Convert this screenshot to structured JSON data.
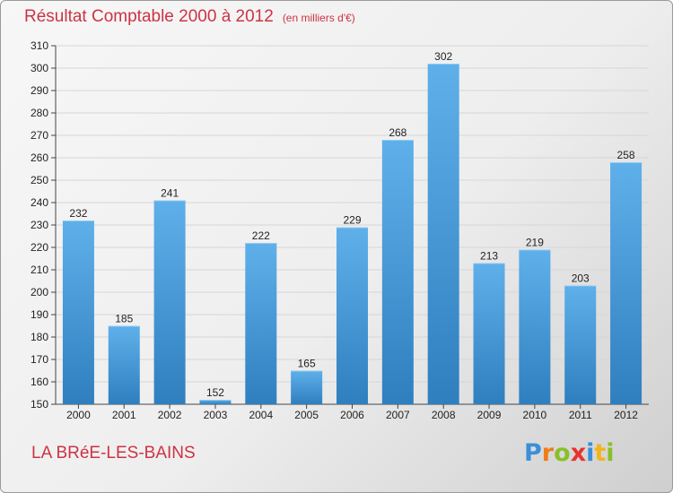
{
  "header": {
    "title": "Résultat Comptable 2000 à 2012",
    "subtitle": "(en milliers d'€)"
  },
  "footer": {
    "commune": "LA BRéE-LES-BAINS",
    "logo": {
      "text": "Proxiti",
      "letters": [
        {
          "ch": "P",
          "color": "#3a8fd8"
        },
        {
          "ch": "r",
          "color": "#f07c1a"
        },
        {
          "ch": "o",
          "color": "#8bbf2a"
        },
        {
          "ch": "x",
          "color": "#e8342c"
        },
        {
          "ch": "i",
          "color": "#3a8fd8"
        },
        {
          "ch": "t",
          "color": "#f2b41a"
        },
        {
          "ch": "i",
          "color": "#8bbf2a"
        }
      ]
    }
  },
  "colors": {
    "bar_top": "#5fb0ea",
    "bar_bottom": "#2f7fbf",
    "grid": "#d6d6d6",
    "title": "#cc3344"
  },
  "chart_data": {
    "type": "bar",
    "title": "Résultat Comptable 2000 à 2012",
    "subtitle": "(en milliers d'€)",
    "xlabel": "",
    "ylabel": "",
    "categories": [
      "2000",
      "2001",
      "2002",
      "2003",
      "2004",
      "2005",
      "2006",
      "2007",
      "2008",
      "2009",
      "2010",
      "2011",
      "2012"
    ],
    "values": [
      232,
      185,
      241,
      152,
      222,
      165,
      229,
      268,
      302,
      213,
      219,
      203,
      258
    ],
    "ylim": [
      150,
      310
    ],
    "yticks": [
      150,
      160,
      170,
      180,
      190,
      200,
      210,
      220,
      230,
      240,
      250,
      260,
      270,
      280,
      290,
      300,
      310
    ],
    "grid": true,
    "legend": "none"
  }
}
